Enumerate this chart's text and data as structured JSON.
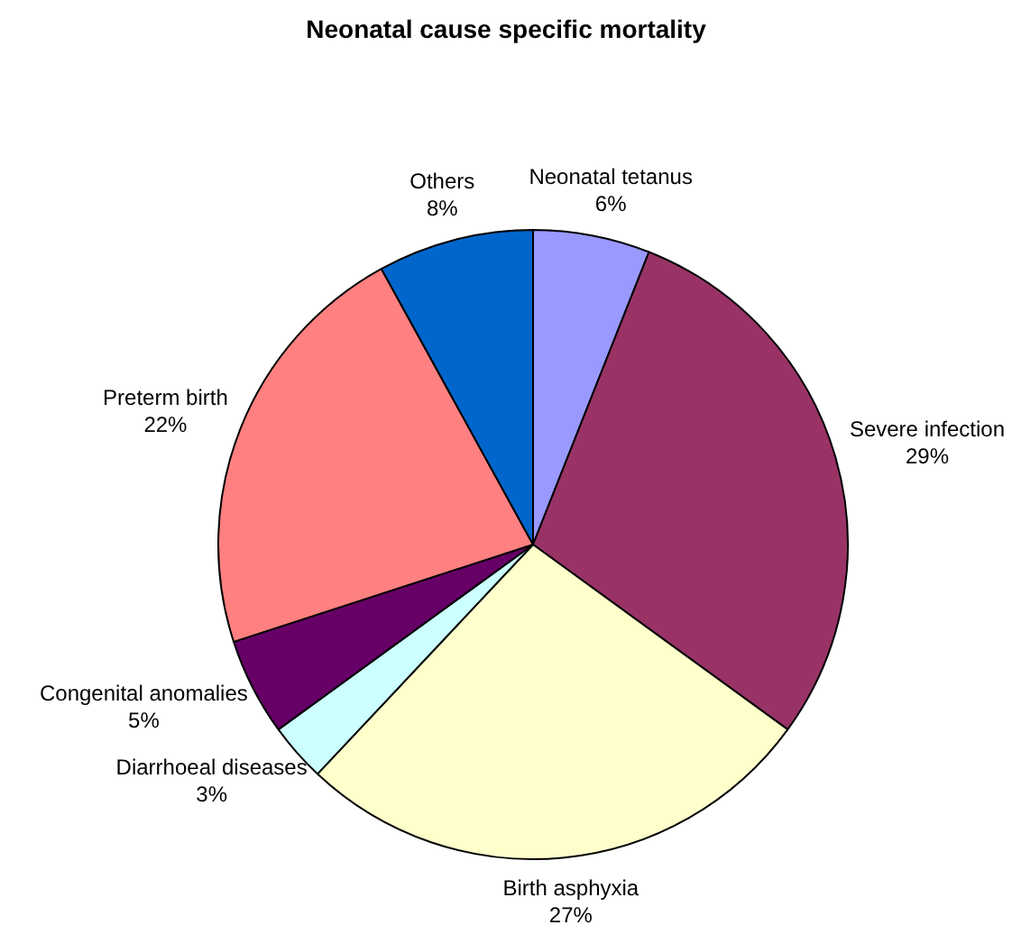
{
  "chart_data": {
    "type": "pie",
    "title": "Neonatal cause specific mortality",
    "categories": [
      "Neonatal tetanus",
      "Severe infection",
      "Birth asphyxia",
      "Diarrhoeal diseases",
      "Congenital anomalies",
      "Preterm birth",
      "Others"
    ],
    "values": [
      6,
      29,
      27,
      3,
      5,
      22,
      8
    ],
    "value_labels": [
      "6%",
      "29%",
      "27%",
      "3%",
      "5%",
      "22%",
      "8%"
    ],
    "colors": [
      "#9999ff",
      "#993366",
      "#ffffcc",
      "#ccffff",
      "#660066",
      "#ff8080",
      "#0066cc"
    ],
    "legend": false
  }
}
